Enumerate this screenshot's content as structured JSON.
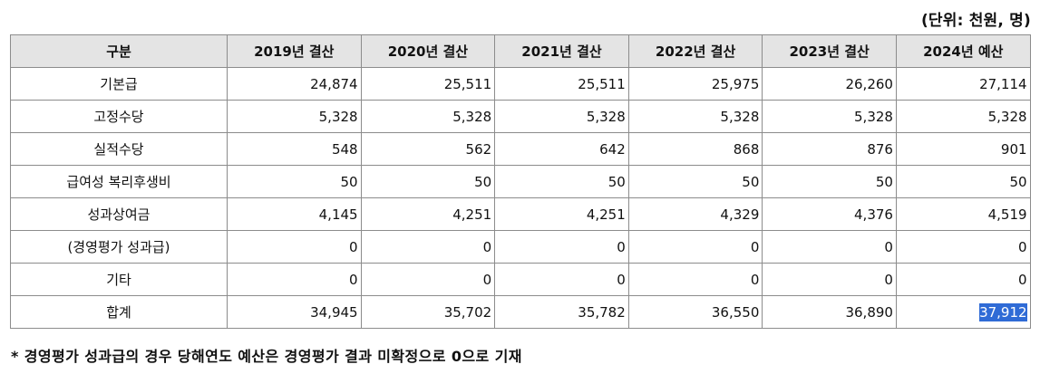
{
  "unit_note": "(단위: 천원, 명)",
  "table": {
    "headers": [
      "구분",
      "2019년 결산",
      "2020년 결산",
      "2021년 결산",
      "2022년 결산",
      "2023년 결산",
      "2024년 예산"
    ],
    "rows": [
      {
        "label": "기본급",
        "values": [
          "24,874",
          "25,511",
          "25,511",
          "25,975",
          "26,260",
          "27,114"
        ]
      },
      {
        "label": "고정수당",
        "values": [
          "5,328",
          "5,328",
          "5,328",
          "5,328",
          "5,328",
          "5,328"
        ]
      },
      {
        "label": "실적수당",
        "values": [
          "548",
          "562",
          "642",
          "868",
          "876",
          "901"
        ]
      },
      {
        "label": "급여성 복리후생비",
        "values": [
          "50",
          "50",
          "50",
          "50",
          "50",
          "50"
        ]
      },
      {
        "label": "성과상여금",
        "values": [
          "4,145",
          "4,251",
          "4,251",
          "4,329",
          "4,376",
          "4,519"
        ]
      },
      {
        "label": "(경영평가 성과급)",
        "values": [
          "0",
          "0",
          "0",
          "0",
          "0",
          "0"
        ]
      },
      {
        "label": "기타",
        "values": [
          "0",
          "0",
          "0",
          "0",
          "0",
          "0"
        ]
      },
      {
        "label": "합계",
        "values": [
          "34,945",
          "35,702",
          "35,782",
          "36,550",
          "36,890",
          "37,912"
        ]
      }
    ],
    "selected_cell": {
      "row": 7,
      "col": 5
    },
    "header_background": "#e4e4e4",
    "selection_color": "#2f6bd6"
  },
  "footnote": "* 경영평가 성과급의 경우 당해연도 예산은 경영평가 결과 미확정으로 0으로 기재"
}
